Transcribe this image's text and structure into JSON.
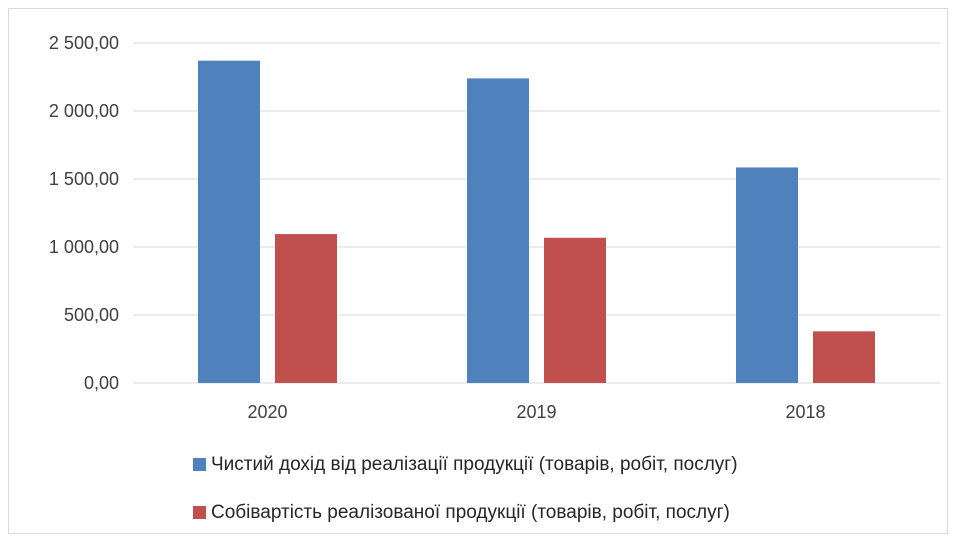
{
  "chart_data": {
    "type": "bar",
    "categories": [
      "2020",
      "2019",
      "2018"
    ],
    "series": [
      {
        "name": "Чистий дохід від реалізації продукції (товарів, робіт, послуг)",
        "color": "#4f81bd",
        "values": [
          2370,
          2240,
          1585
        ]
      },
      {
        "name": "Собівартість реалізованої продукції (товарів, робіт, послуг)",
        "color": "#c0504d",
        "values": [
          1095,
          1068,
          380
        ]
      }
    ],
    "ylim": [
      0,
      2500
    ],
    "yticks": [
      {
        "value": 0,
        "label": "0,00"
      },
      {
        "value": 500,
        "label": "500,00"
      },
      {
        "value": 1000,
        "label": "1 000,00"
      },
      {
        "value": 1500,
        "label": "1 500,00"
      },
      {
        "value": 2000,
        "label": "2 000,00"
      },
      {
        "value": 2500,
        "label": "2 500,00"
      }
    ],
    "title": "",
    "xlabel": "",
    "ylabel": "",
    "grid": true,
    "gridline_color": "#d9d9d9",
    "legend_position": "bottom"
  }
}
